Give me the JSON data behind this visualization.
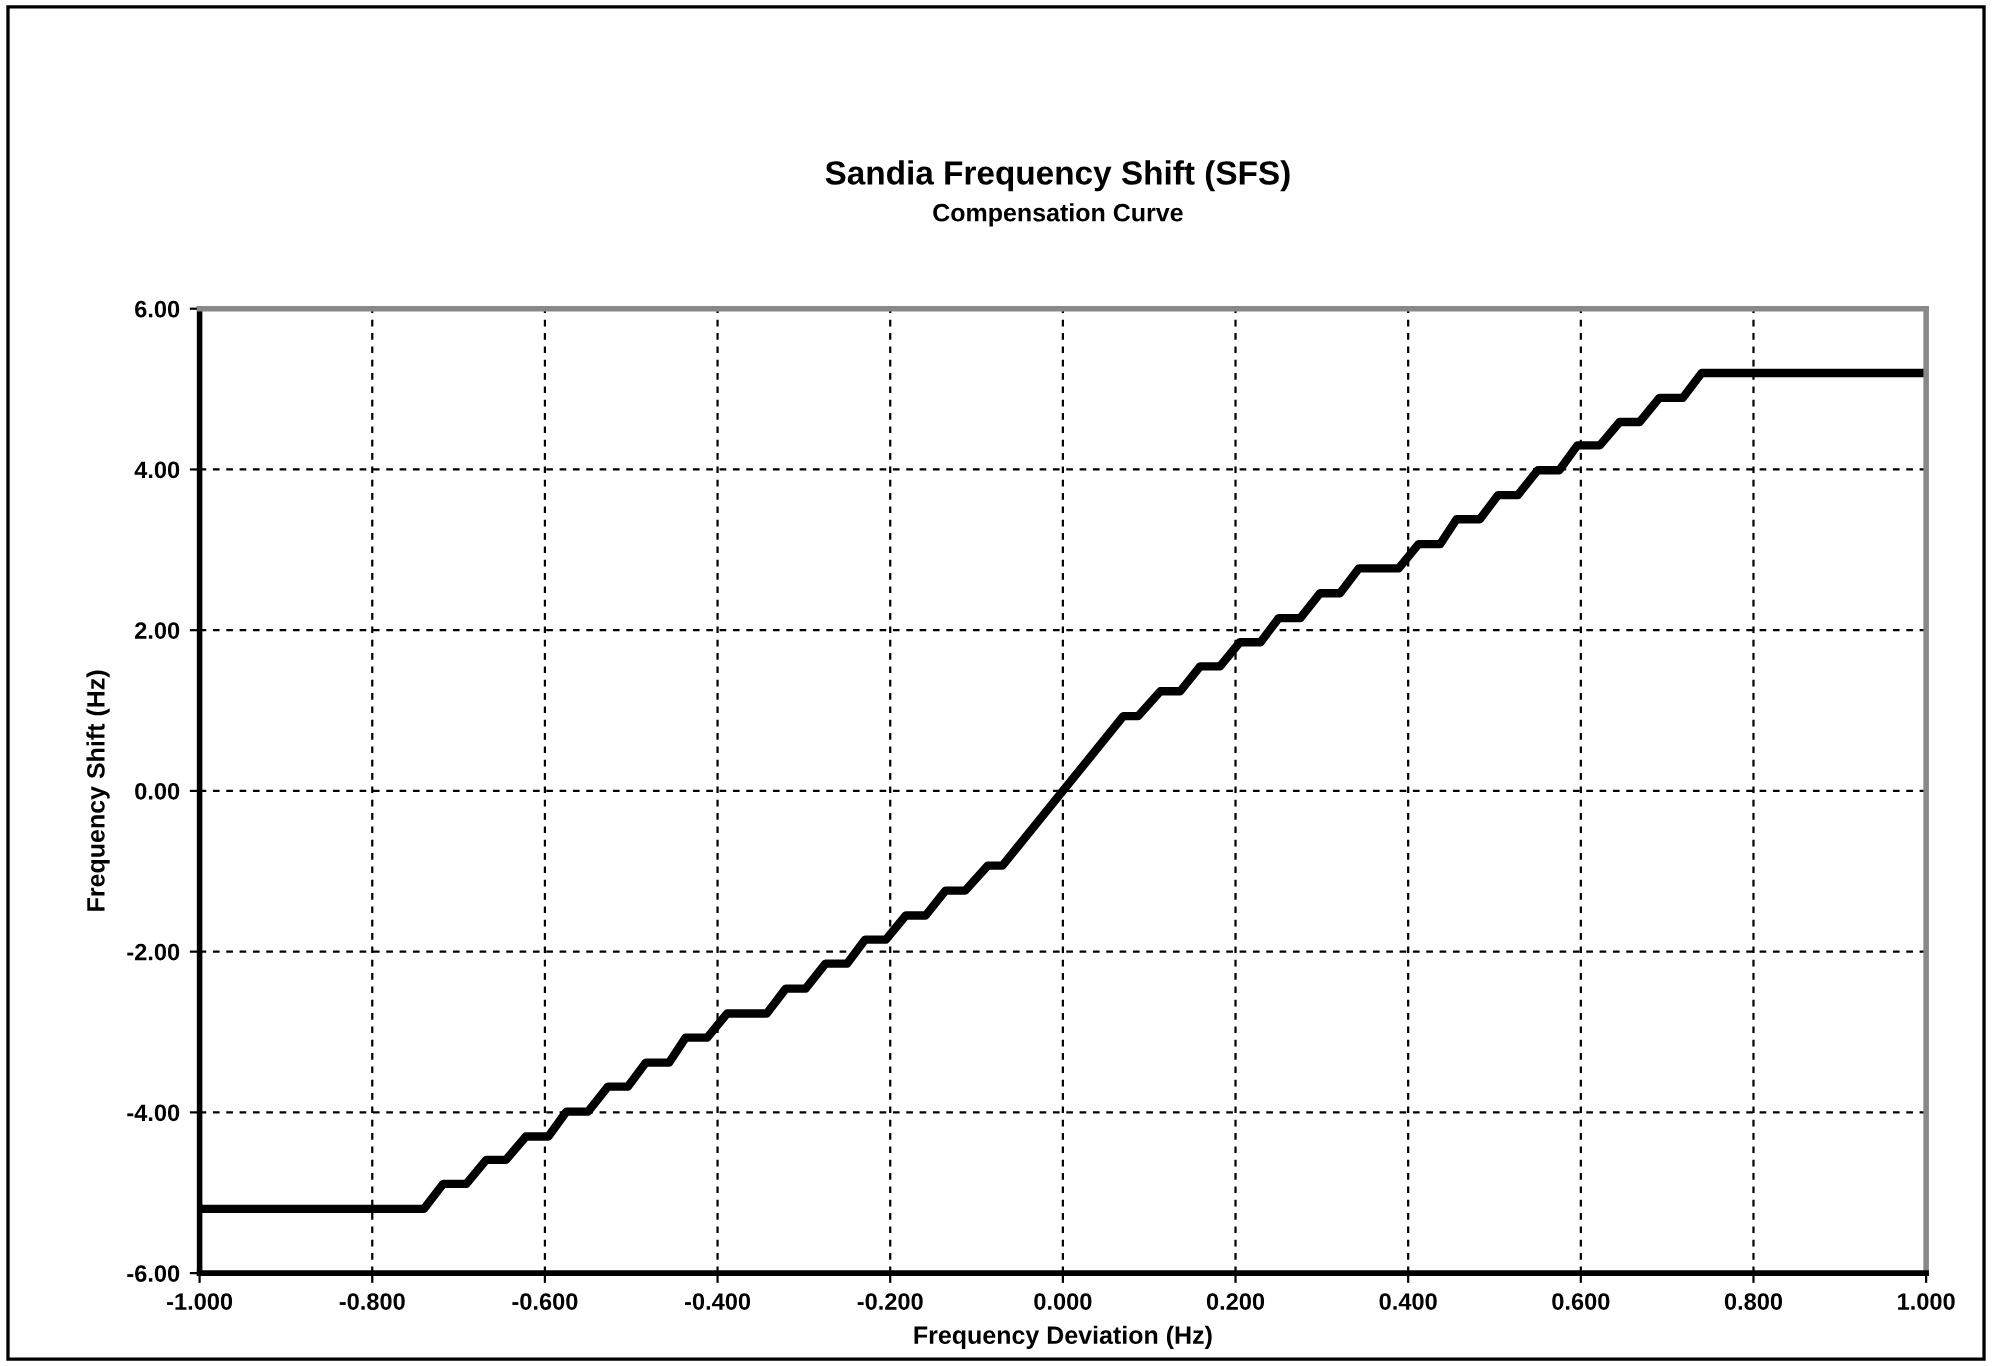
{
  "chart_data": {
    "type": "line",
    "title": "Sandia Frequency Shift (SFS)",
    "subtitle": "Compensation Curve",
    "xlabel": "Frequency Deviation (Hz)",
    "ylabel": "Frequency Shift (Hz)",
    "series": [
      {
        "color": "#000000",
        "x": [
          -1.0,
          -0.74,
          -0.718,
          -0.691,
          -0.668,
          -0.645,
          -0.622,
          -0.596,
          -0.575,
          -0.55,
          -0.527,
          -0.504,
          -0.483,
          -0.456,
          -0.437,
          -0.412,
          -0.389,
          -0.343,
          -0.321,
          -0.298,
          -0.275,
          -0.25,
          -0.229,
          -0.205,
          -0.182,
          -0.159,
          -0.136,
          -0.113,
          -0.087,
          -0.07,
          0.0,
          0.07,
          0.087,
          0.113,
          0.136,
          0.159,
          0.182,
          0.205,
          0.229,
          0.25,
          0.275,
          0.298,
          0.321,
          0.343,
          0.389,
          0.412,
          0.437,
          0.456,
          0.483,
          0.504,
          0.527,
          0.55,
          0.575,
          0.596,
          0.622,
          0.645,
          0.668,
          0.691,
          0.718,
          0.74,
          1.0
        ],
        "values": [
          -5.2,
          -5.2,
          -4.89,
          -4.89,
          -4.59,
          -4.59,
          -4.3,
          -4.3,
          -3.99,
          -3.99,
          -3.68,
          -3.68,
          -3.38,
          -3.38,
          -3.07,
          -3.07,
          -2.77,
          -2.77,
          -2.46,
          -2.46,
          -2.15,
          -2.15,
          -1.85,
          -1.85,
          -1.55,
          -1.55,
          -1.24,
          -1.24,
          -0.93,
          -0.93,
          0.0,
          0.93,
          0.93,
          1.24,
          1.24,
          1.55,
          1.55,
          1.85,
          1.85,
          2.15,
          2.15,
          2.46,
          2.46,
          2.77,
          2.77,
          3.07,
          3.07,
          3.38,
          3.38,
          3.68,
          3.68,
          3.99,
          3.99,
          4.3,
          4.3,
          4.59,
          4.59,
          4.89,
          4.89,
          5.2,
          5.2
        ]
      }
    ],
    "xlim": [
      -1.0,
      1.0
    ],
    "ylim": [
      -6.0,
      6.0
    ],
    "xticks": [
      {
        "value": -1.0,
        "label": "-1.000"
      },
      {
        "value": -0.8,
        "label": "-0.800"
      },
      {
        "value": -0.6,
        "label": "-0.600"
      },
      {
        "value": -0.4,
        "label": "-0.400"
      },
      {
        "value": -0.2,
        "label": "-0.200"
      },
      {
        "value": 0.0,
        "label": "0.000"
      },
      {
        "value": 0.2,
        "label": "0.200"
      },
      {
        "value": 0.4,
        "label": "0.400"
      },
      {
        "value": 0.6,
        "label": "0.600"
      },
      {
        "value": 0.8,
        "label": "0.800"
      },
      {
        "value": 1.0,
        "label": "1.000"
      }
    ],
    "yticks": [
      {
        "value": -6.0,
        "label": "-6.00"
      },
      {
        "value": -4.0,
        "label": "-4.00"
      },
      {
        "value": -2.0,
        "label": "-2.00"
      },
      {
        "value": 0.0,
        "label": "0.00"
      },
      {
        "value": 2.0,
        "label": "2.00"
      },
      {
        "value": 4.0,
        "label": "4.00"
      },
      {
        "value": 6.0,
        "label": "6.00"
      }
    ],
    "grid": true,
    "line_style": "solid"
  }
}
